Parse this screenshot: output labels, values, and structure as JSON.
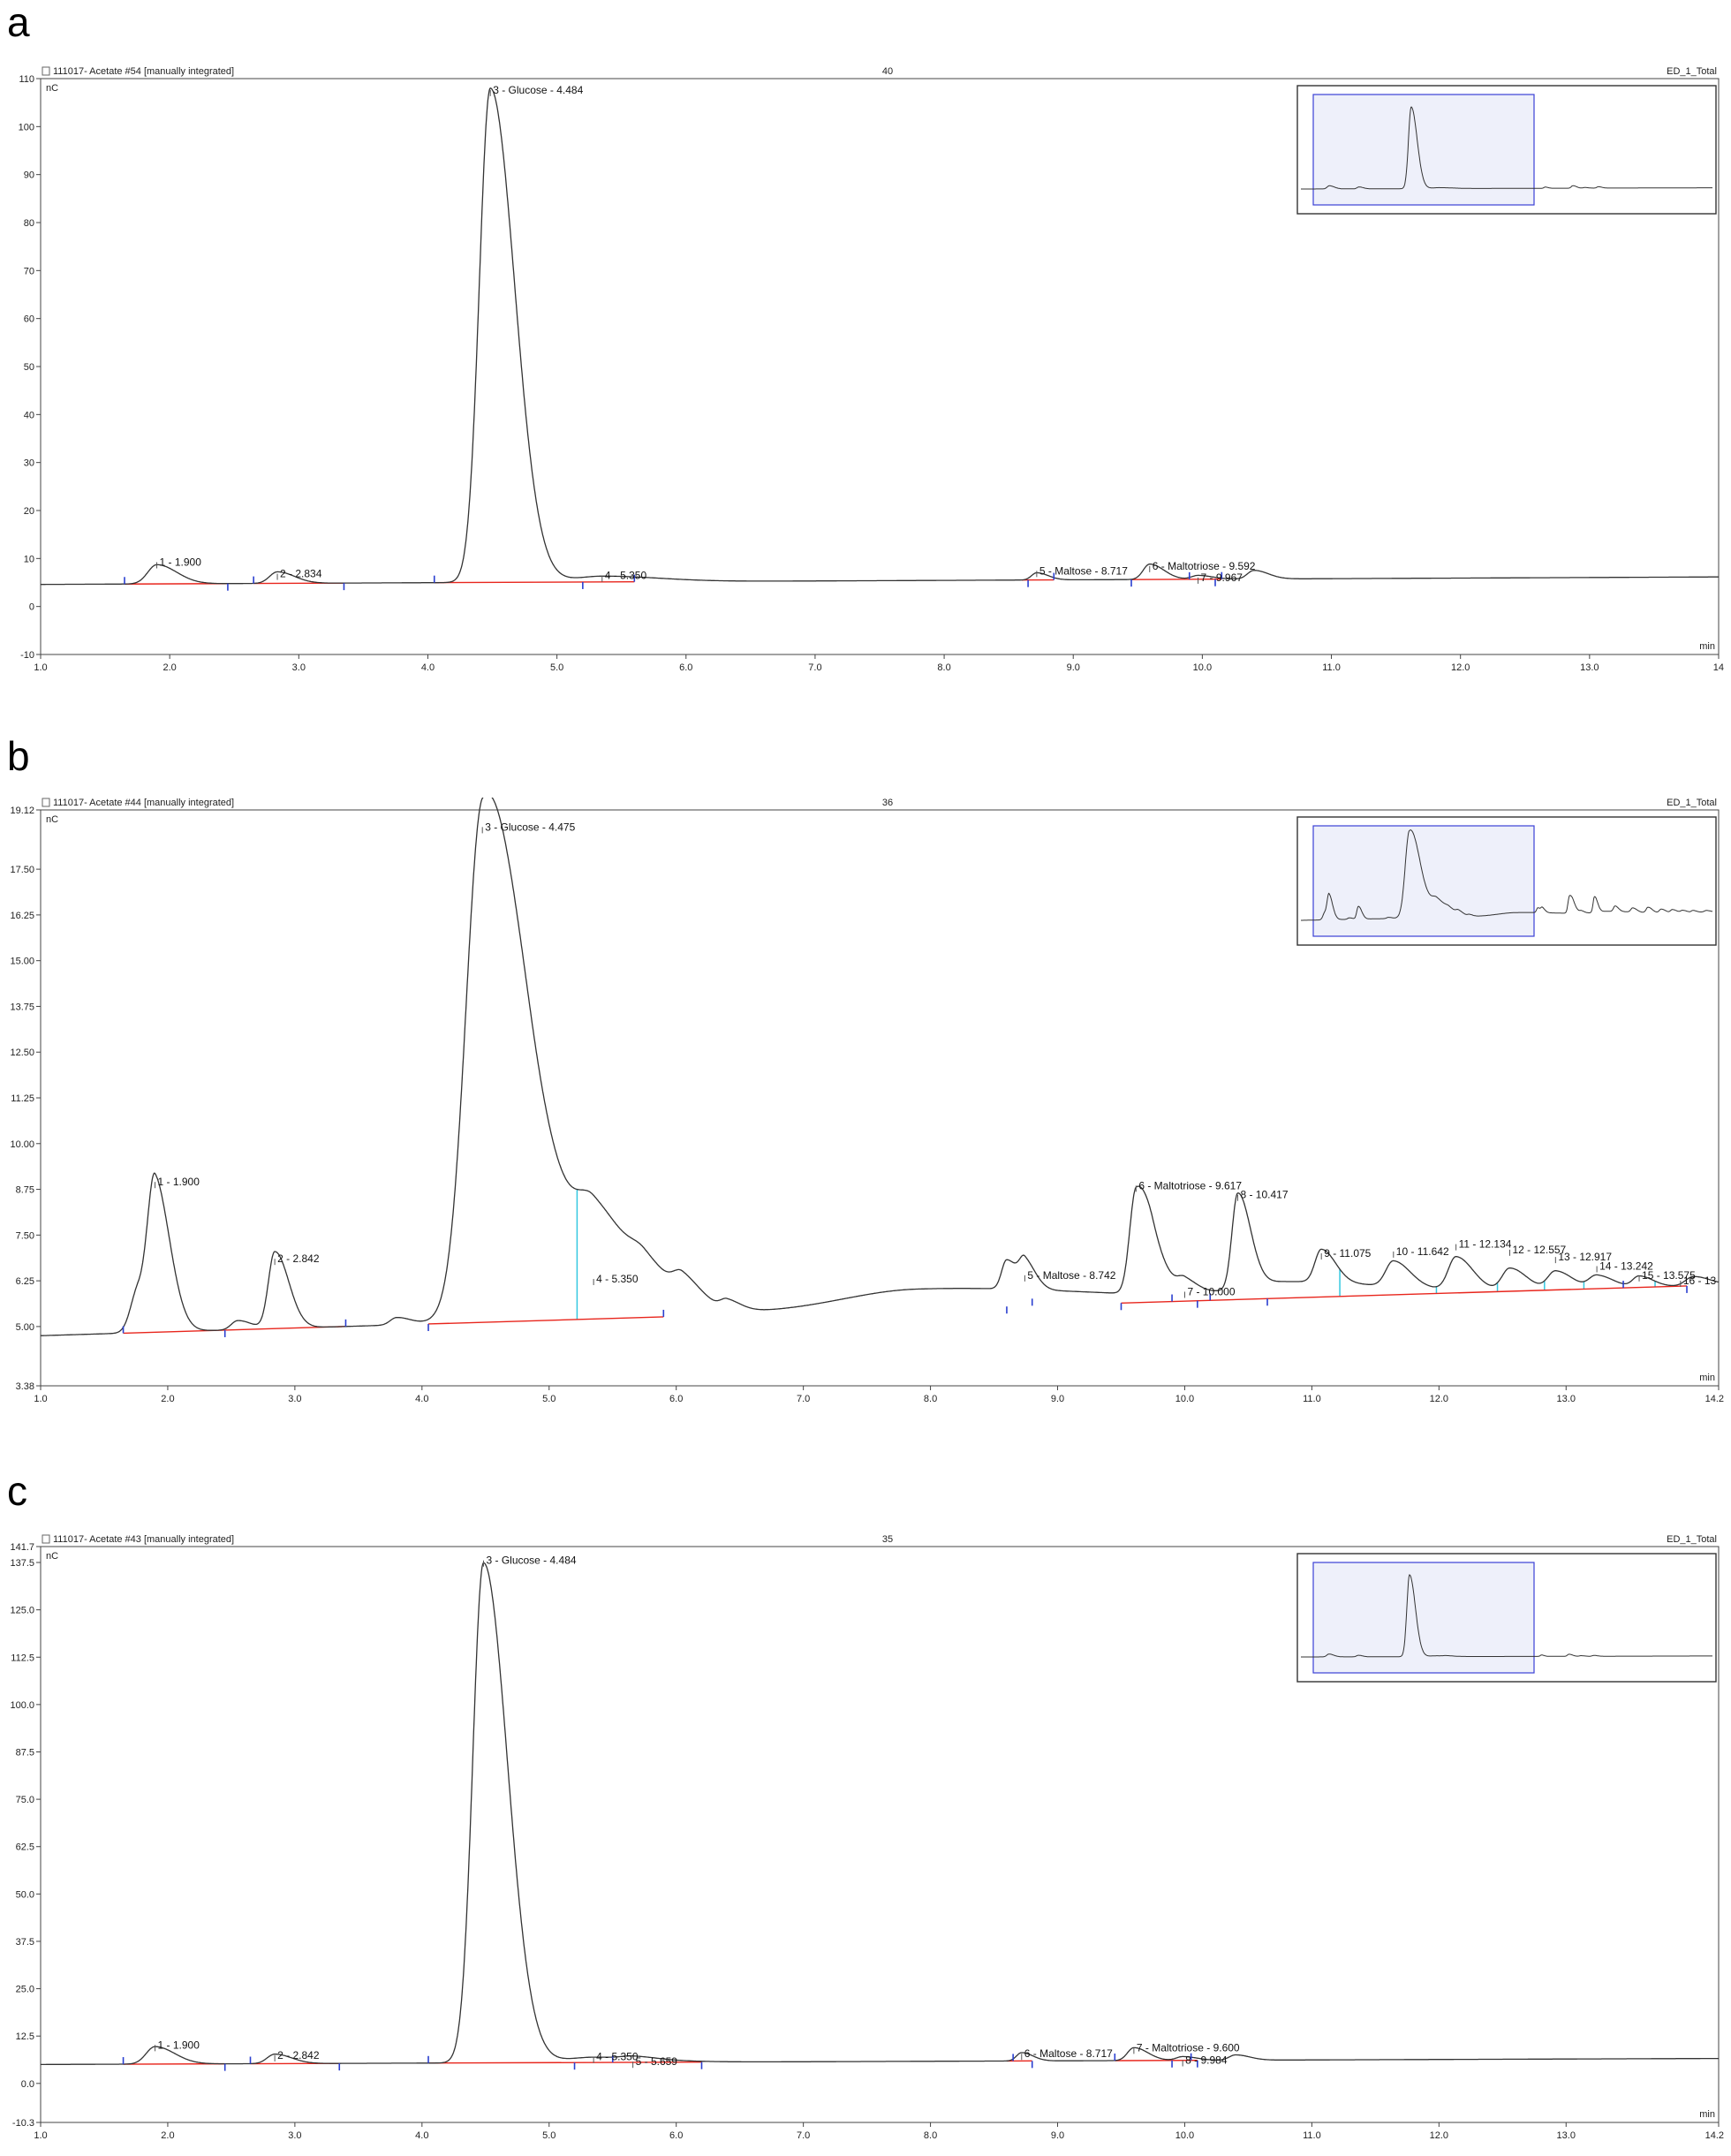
{
  "panels": [
    {
      "letter": "a",
      "header_left": "111017- Acetate #54 [manually integrated]",
      "header_center": "40",
      "header_right": "ED_1_Total",
      "unit": "nC",
      "xunit": "min"
    },
    {
      "letter": "b",
      "header_left": "111017- Acetate #44 [manually integrated]",
      "header_center": "36",
      "header_right": "ED_1_Total",
      "unit": "nC",
      "xunit": "min"
    },
    {
      "letter": "c",
      "header_left": "111017- Acetate #43 [manually integrated]",
      "header_center": "35",
      "header_right": "ED_1_Total",
      "unit": "nC",
      "xunit": "min"
    }
  ],
  "colors": {
    "trace": "#333333",
    "baseline": "#e8251c",
    "marker": "#2a3fd0",
    "drop_line": "#34c8e0",
    "inset_fill": "#eef0fa",
    "inset_border": "#3a3fd6"
  },
  "chart_data": [
    {
      "type": "line",
      "xlim": [
        1.0,
        14.0
      ],
      "ylim": [
        -10,
        110
      ],
      "x_ticks": [
        1.0,
        2.0,
        3.0,
        4.0,
        5.0,
        6.0,
        7.0,
        8.0,
        9.0,
        10.0,
        11.0,
        12.0,
        13.0,
        14.0
      ],
      "x_tick_labels": [
        "1.0",
        "2.0",
        "3.0",
        "4.0",
        "5.0",
        "6.0",
        "7.0",
        "8.0",
        "9.0",
        "10.0",
        "11.0",
        "12.0",
        "13.0",
        "14"
      ],
      "y_ticks": [
        -10,
        0,
        10,
        20,
        30,
        40,
        50,
        60,
        70,
        80,
        90,
        100,
        110
      ],
      "y_tick_labels": [
        "-10",
        "0",
        "10",
        "20",
        "30",
        "40",
        "50",
        "60",
        "70",
        "80",
        "90",
        "100",
        "110"
      ],
      "baseline_level": 4.6,
      "baseline_slope": 0.12,
      "peaks": [
        {
          "x": 1.9,
          "h": 4.0,
          "w": 0.07
        },
        {
          "x": 2.834,
          "h": 2.4,
          "w": 0.06
        },
        {
          "x": 4.484,
          "h": 103.0,
          "w": 0.085
        },
        {
          "x": 5.35,
          "h": 1.2,
          "w": 0.2
        },
        {
          "x": 8.717,
          "h": 1.5,
          "w": 0.04
        },
        {
          "x": 9.592,
          "h": 3.2,
          "w": 0.05
        },
        {
          "x": 9.967,
          "h": 0.8,
          "w": 0.05
        },
        {
          "x": 10.4,
          "h": 1.8,
          "w": 0.05
        }
      ],
      "peak_labels": [
        {
          "x": 1.9,
          "y": 9.6,
          "text": "1 - 1.900"
        },
        {
          "x": 2.834,
          "y": 7.2,
          "text": "2 - 2.834"
        },
        {
          "x": 4.484,
          "y": 108.0,
          "text": "3 - Glucose - 4.484"
        },
        {
          "x": 5.35,
          "y": 6.8,
          "text": "4 - 5.350"
        },
        {
          "x": 8.717,
          "y": 7.8,
          "text": "5 - Maltose - 8.717"
        },
        {
          "x": 9.592,
          "y": 8.8,
          "text": "6 - Maltotriose - 9.592"
        },
        {
          "x": 9.967,
          "y": 6.4,
          "text": "7 - 9.967"
        }
      ],
      "baselines": [
        [
          1.65,
          2.45
        ],
        [
          2.65,
          3.35
        ],
        [
          4.05,
          5.6
        ],
        [
          8.6,
          8.85
        ],
        [
          9.45,
          10.15
        ]
      ],
      "markers": [
        1.65,
        2.45,
        2.65,
        3.35,
        4.05,
        5.2,
        5.6,
        8.65,
        8.85,
        9.45,
        9.9,
        10.1,
        10.15
      ],
      "drop_lines": []
    },
    {
      "type": "line",
      "xlim": [
        1.0,
        14.2
      ],
      "ylim": [
        3.38,
        19.12
      ],
      "x_ticks": [
        1.0,
        2.0,
        3.0,
        4.0,
        5.0,
        6.0,
        7.0,
        8.0,
        9.0,
        10.0,
        11.0,
        12.0,
        13.0,
        14.2
      ],
      "x_tick_labels": [
        "1.0",
        "2.0",
        "3.0",
        "4.0",
        "5.0",
        "6.0",
        "7.0",
        "8.0",
        "9.0",
        "10.0",
        "11.0",
        "12.0",
        "13.0",
        "14.2"
      ],
      "y_ticks": [
        3.38,
        5.0,
        6.25,
        7.5,
        8.75,
        10.0,
        11.25,
        12.5,
        13.75,
        15.0,
        16.25,
        17.5,
        19.12
      ],
      "y_tick_labels": [
        "3.38",
        "5.00",
        "6.25",
        "7.50",
        "8.75",
        "10.00",
        "11.25",
        "12.50",
        "13.75",
        "15.00",
        "16.25",
        "17.50",
        "19.12"
      ],
      "baseline_level": 4.75,
      "baseline_slope": 0.105,
      "peaks": [
        {
          "x": 1.77,
          "h": 1.2,
          "w": 0.06
        },
        {
          "x": 1.9,
          "h": 3.6,
          "w": 0.055
        },
        {
          "x": 2.55,
          "h": 0.25,
          "w": 0.05
        },
        {
          "x": 2.842,
          "h": 2.1,
          "w": 0.05
        },
        {
          "x": 3.8,
          "h": 0.2,
          "w": 0.05
        },
        {
          "x": 4.475,
          "h": 13.1,
          "w": 0.13
        },
        {
          "x": 4.85,
          "h": 3.0,
          "w": 0.28
        },
        {
          "x": 5.35,
          "h": 1.1,
          "w": 0.12
        },
        {
          "x": 5.75,
          "h": 0.5,
          "w": 0.1
        },
        {
          "x": 6.05,
          "h": 0.55,
          "w": 0.07
        },
        {
          "x": 6.4,
          "h": 0.25,
          "w": 0.05
        },
        {
          "x": 7.9,
          "h": 0.55,
          "w": 0.6
        },
        {
          "x": 8.6,
          "h": 0.8,
          "w": 0.04
        },
        {
          "x": 8.742,
          "h": 0.7,
          "w": 0.04
        },
        {
          "x": 9.617,
          "h": 2.8,
          "w": 0.05
        },
        {
          "x": 9.75,
          "h": 0.7,
          "w": 0.07
        },
        {
          "x": 10.0,
          "h": 0.3,
          "w": 0.05
        },
        {
          "x": 10.417,
          "h": 2.6,
          "w": 0.045
        },
        {
          "x": 10.8,
          "h": 0.4,
          "w": 0.35
        },
        {
          "x": 11.075,
          "h": 0.9,
          "w": 0.05
        },
        {
          "x": 11.642,
          "h": 0.7,
          "w": 0.06
        },
        {
          "x": 12.134,
          "h": 0.9,
          "w": 0.06
        },
        {
          "x": 12.557,
          "h": 0.6,
          "w": 0.06
        },
        {
          "x": 12.917,
          "h": 0.5,
          "w": 0.06
        },
        {
          "x": 13.242,
          "h": 0.35,
          "w": 0.06
        },
        {
          "x": 13.575,
          "h": 0.3,
          "w": 0.05
        },
        {
          "x": 14.0,
          "h": 0.25,
          "w": 0.06
        }
      ],
      "peak_labels": [
        {
          "x": 1.9,
          "y": 9.0,
          "text": "1 - 1.900"
        },
        {
          "x": 2.842,
          "y": 6.9,
          "text": "2 - 2.842"
        },
        {
          "x": 4.475,
          "y": 18.7,
          "text": "3 - Glucose - 4.475"
        },
        {
          "x": 5.35,
          "y": 6.35,
          "text": "4 - 5.350"
        },
        {
          "x": 8.742,
          "y": 6.45,
          "text": "5 - Maltose - 8.742"
        },
        {
          "x": 9.617,
          "y": 8.9,
          "text": "6 - Maltotriose - 9.617"
        },
        {
          "x": 10.0,
          "y": 6.0,
          "text": "7 - 10.000"
        },
        {
          "x": 10.417,
          "y": 8.65,
          "text": "8 - 10.417"
        },
        {
          "x": 11.075,
          "y": 7.05,
          "text": "9 - 11.075"
        },
        {
          "x": 11.642,
          "y": 7.1,
          "text": "10 - 11.642"
        },
        {
          "x": 12.134,
          "y": 7.3,
          "text": "11 - 12.134"
        },
        {
          "x": 12.557,
          "y": 7.15,
          "text": "12 - 12.557"
        },
        {
          "x": 12.917,
          "y": 6.95,
          "text": "13 - 12.917"
        },
        {
          "x": 13.242,
          "y": 6.7,
          "text": "14 - 13.242"
        },
        {
          "x": 13.575,
          "y": 6.45,
          "text": "15 - 13.575"
        },
        {
          "x": 13.9,
          "y": 6.3,
          "text": "16 - 13"
        }
      ],
      "baselines": [
        [
          1.65,
          2.45
        ],
        [
          2.45,
          3.4
        ],
        [
          4.05,
          5.9
        ],
        [
          9.5,
          13.95
        ]
      ],
      "markers": [
        1.65,
        2.45,
        3.4,
        4.05,
        5.9,
        8.6,
        8.8,
        9.5,
        9.9,
        10.1,
        10.2,
        10.65,
        13.45,
        13.95
      ],
      "drop_lines": [
        5.22,
        11.22,
        11.98,
        12.46,
        12.83,
        13.14,
        13.7
      ]
    },
    {
      "type": "line",
      "xlim": [
        1.0,
        14.2
      ],
      "ylim": [
        -10.3,
        141.7
      ],
      "x_ticks": [
        1.0,
        2.0,
        3.0,
        4.0,
        5.0,
        6.0,
        7.0,
        8.0,
        9.0,
        10.0,
        11.0,
        12.0,
        13.0,
        14.2
      ],
      "x_tick_labels": [
        "1.0",
        "2.0",
        "3.0",
        "4.0",
        "5.0",
        "6.0",
        "7.0",
        "8.0",
        "9.0",
        "10.0",
        "11.0",
        "12.0",
        "13.0",
        "14.2"
      ],
      "y_ticks": [
        -10.3,
        0.0,
        12.5,
        25.0,
        37.5,
        50.0,
        62.5,
        75.0,
        87.5,
        100.0,
        112.5,
        125.0,
        137.5,
        141.7
      ],
      "y_tick_labels": [
        "-10.3",
        "0.0",
        "12.5",
        "25.0",
        "37.5",
        "50.0",
        "62.5",
        "75.0",
        "87.5",
        "100.0",
        "112.5",
        "125.0",
        "137.5",
        "141.7"
      ],
      "baseline_level": 5.0,
      "baseline_slope": 0.12,
      "peaks": [
        {
          "x": 1.9,
          "h": 4.6,
          "w": 0.07
        },
        {
          "x": 2.842,
          "h": 2.5,
          "w": 0.06
        },
        {
          "x": 4.484,
          "h": 132.0,
          "w": 0.085
        },
        {
          "x": 5.35,
          "h": 1.4,
          "w": 0.2
        },
        {
          "x": 5.659,
          "h": 0.6,
          "w": 0.08
        },
        {
          "x": 8.717,
          "h": 2.2,
          "w": 0.04
        },
        {
          "x": 9.6,
          "h": 3.4,
          "w": 0.05
        },
        {
          "x": 9.984,
          "h": 1.0,
          "w": 0.05
        },
        {
          "x": 10.4,
          "h": 1.4,
          "w": 0.05
        }
      ],
      "peak_labels": [
        {
          "x": 1.9,
          "y": 10.6,
          "text": "1 - 1.900"
        },
        {
          "x": 2.842,
          "y": 7.9,
          "text": "2 - 2.842"
        },
        {
          "x": 4.484,
          "y": 138.5,
          "text": "3 - Glucose - 4.484"
        },
        {
          "x": 5.35,
          "y": 7.5,
          "text": "4 - 5.350"
        },
        {
          "x": 5.659,
          "y": 6.2,
          "text": "5 - 5.659"
        },
        {
          "x": 8.717,
          "y": 8.3,
          "text": "6 - Maltose - 8.717"
        },
        {
          "x": 9.6,
          "y": 9.9,
          "text": "7 - Maltotriose - 9.600"
        },
        {
          "x": 9.984,
          "y": 6.6,
          "text": "8 - 9.984"
        }
      ],
      "baselines": [
        [
          1.65,
          2.45
        ],
        [
          2.65,
          3.35
        ],
        [
          4.05,
          5.5
        ],
        [
          5.5,
          6.2
        ],
        [
          8.6,
          8.8
        ],
        [
          9.45,
          10.1
        ]
      ],
      "markers": [
        1.65,
        2.45,
        2.65,
        3.35,
        4.05,
        5.2,
        5.5,
        6.2,
        8.65,
        8.8,
        9.45,
        9.9,
        10.05,
        10.1
      ],
      "drop_lines": []
    }
  ]
}
